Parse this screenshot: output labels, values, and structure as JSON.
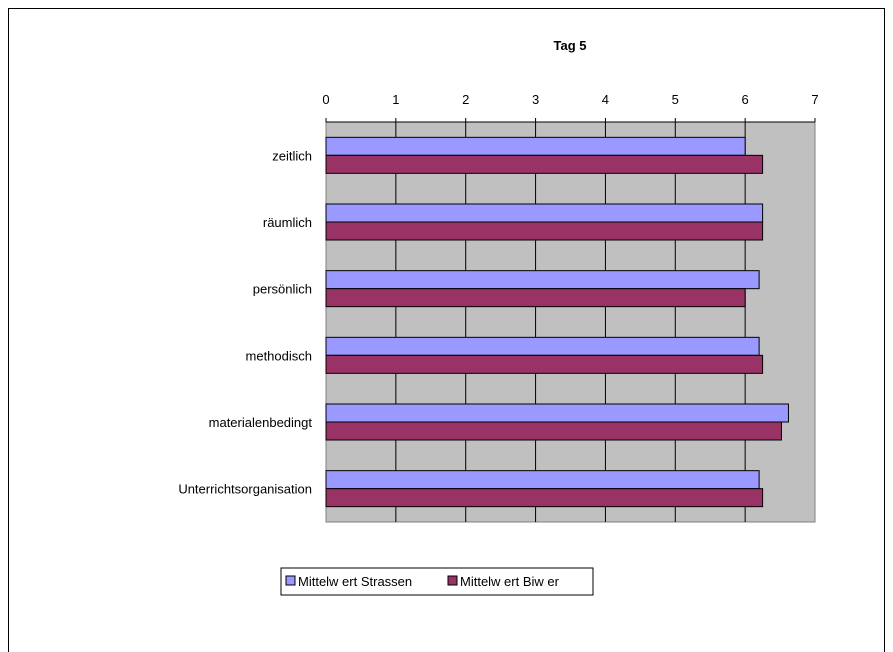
{
  "chart_data": {
    "type": "bar",
    "orientation": "horizontal",
    "title": "Tag 5",
    "categories": [
      "zeitlich",
      "räumlich",
      "persönlich",
      "methodisch",
      "materialenbedingt",
      "Unterrichtsorganisation"
    ],
    "series": [
      {
        "name": "Mittelw ert Strassen",
        "color": "#9999ff",
        "values": [
          6.0,
          6.25,
          6.2,
          6.2,
          6.62,
          6.2
        ]
      },
      {
        "name": "Mittelw ert Biw er",
        "color": "#993366",
        "values": [
          6.25,
          6.25,
          6.0,
          6.25,
          6.52,
          6.25
        ]
      }
    ],
    "xlim": [
      0,
      7
    ],
    "xticks": [
      "0",
      "1",
      "2",
      "3",
      "4",
      "5",
      "6",
      "7"
    ],
    "x_axis_position": "top",
    "grid": true,
    "plot_background": "#c0c0c0",
    "legend_position": "bottom"
  }
}
